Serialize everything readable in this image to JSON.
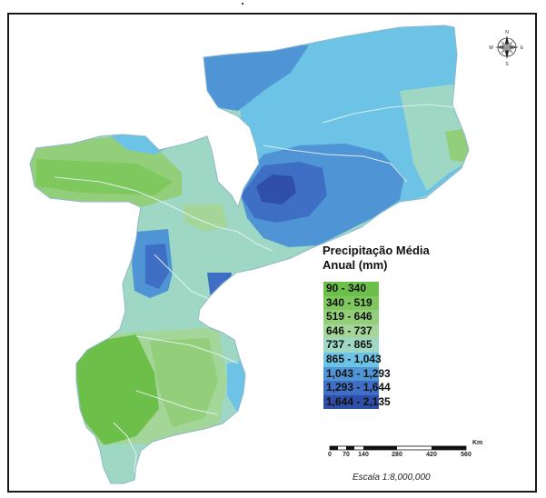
{
  "legend": {
    "title_line1": "Precipitação Média",
    "title_line2": "Anual (mm)",
    "classes": [
      {
        "label": "90 - 340",
        "color": "#6cc04a"
      },
      {
        "label": "340 - 519",
        "color": "#7ec85e"
      },
      {
        "label": "519 - 646",
        "color": "#93cf7a"
      },
      {
        "label": "646 - 737",
        "color": "#a4d69a"
      },
      {
        "label": "737 - 865",
        "color": "#9ed8c4"
      },
      {
        "label": "865 - 1,043",
        "color": "#6cc3e6"
      },
      {
        "label": "1,043 - 1,293",
        "color": "#4f95d6"
      },
      {
        "label": "1,293 - 1,644",
        "color": "#3e6fc5"
      },
      {
        "label": "1,644 - 2,135",
        "color": "#2f4faa"
      }
    ]
  },
  "scale_bar": {
    "unit": "Km",
    "ticks": [
      "0",
      "70",
      "140",
      "280",
      "420",
      "560"
    ],
    "caption": "Escala 1:8,000,000"
  },
  "compass": {
    "icon": "compass-rose-icon",
    "n": "N",
    "s": "S",
    "e": "E",
    "w": "W"
  }
}
